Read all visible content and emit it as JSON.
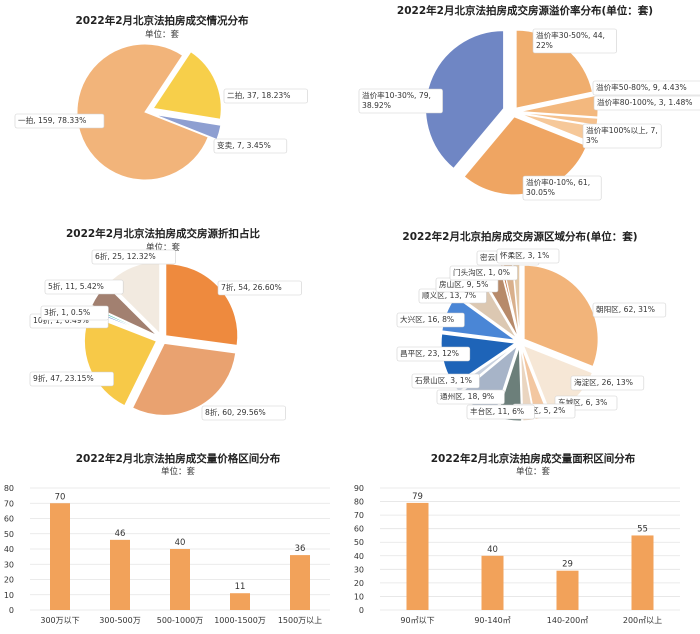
{
  "chart_data": [
    {
      "id": "c1",
      "type": "pie",
      "title": "2022年2月北京法拍房成交情况分布",
      "subtitle": "单位：套",
      "slices": [
        {
          "label": "一拍, 159, 78.33%",
          "value": 159,
          "color": "#F2B47A"
        },
        {
          "label": "二拍, 37, 18.23%",
          "value": 37,
          "color": "#F7CF4A"
        },
        {
          "label": "变卖, 7, 3.45%",
          "value": 7,
          "color": "#8E9FD1"
        }
      ]
    },
    {
      "id": "c2",
      "type": "pie",
      "title": "2022年2月北京法拍房成交房源溢价率分布(单位：套)",
      "subtitle": "",
      "slices": [
        {
          "label": "溢价率30-50%, 44, 22%",
          "value": 44,
          "color": "#F0AE6E"
        },
        {
          "label": "溢价率50-80%, 9, 4.43%",
          "value": 9,
          "color": "#F3B87E"
        },
        {
          "label": "溢价率80-100%, 3, 1.48%",
          "value": 3,
          "color": "#F5C18E"
        },
        {
          "label": "溢价率100%以上, 7, 3%",
          "value": 7,
          "color": "#F6C899"
        },
        {
          "label": "溢价率0-10%, 61, 30.05%",
          "value": 61,
          "color": "#EFA562"
        },
        {
          "label": "溢价率10-30%, 79, 38.92%",
          "value": 79,
          "color": "#6F86C4"
        }
      ]
    },
    {
      "id": "c3",
      "type": "pie",
      "title": "2022年2月北京法拍房成交房源折扣占比",
      "subtitle": "单位：套",
      "slices": [
        {
          "label": "7折, 54, 26.60%",
          "value": 54,
          "color": "#EE8A3E"
        },
        {
          "label": "8折, 60, 29.56%",
          "value": 60,
          "color": "#E9A270"
        },
        {
          "label": "9折, 47, 23.15%",
          "value": 47,
          "color": "#F7C948"
        },
        {
          "label": "10折, 1, 0.49%",
          "value": 1,
          "color": "#5E8FD6"
        },
        {
          "label": "3折, 1, 0.5%",
          "value": 1,
          "color": "#3FBFAF"
        },
        {
          "label": "5折, 11, 5.42%",
          "value": 11,
          "color": "#A28070"
        },
        {
          "label": "6折, 25, 12.32%",
          "value": 25,
          "color": "#F2EAE0"
        }
      ]
    },
    {
      "id": "c4",
      "type": "pie",
      "title": "2022年2月北京拍房成交房源区域分布(单位：套)",
      "subtitle": "",
      "slices": [
        {
          "label": "朝阳区, 62, 31%",
          "value": 62,
          "color": "#F2B47A"
        },
        {
          "label": "海淀区, 26, 13%",
          "value": 26,
          "color": "#F6E7D6"
        },
        {
          "label": "东城区, 6, 3%",
          "value": 6,
          "color": "#F3C7A1"
        },
        {
          "label": "西城区, 5, 2%",
          "value": 5,
          "color": "#EAD5C0"
        },
        {
          "label": "丰台区, 11, 6%",
          "value": 11,
          "color": "#6C7F7A"
        },
        {
          "label": "通州区, 18, 9%",
          "value": 18,
          "color": "#A7B4C8"
        },
        {
          "label": "石景山区, 3, 1%",
          "value": 3,
          "color": "#C9D1DE"
        },
        {
          "label": "昌平区, 23, 12%",
          "value": 23,
          "color": "#1E64B8"
        },
        {
          "label": "大兴区, 16, 8%",
          "value": 16,
          "color": "#4A86D6"
        },
        {
          "label": "顺义区, 13, 7%",
          "value": 13,
          "color": "#DCC8B2"
        },
        {
          "label": "房山区, 9, 5%",
          "value": 9,
          "color": "#B78A6A"
        },
        {
          "label": "门头沟区, 1, 0%",
          "value": 1,
          "color": "#C06A3A"
        },
        {
          "label": "密云区, 4, 2%",
          "value": 4,
          "color": "#D9B08C"
        },
        {
          "label": "怀柔区, 3, 1%",
          "value": 3,
          "color": "#E3C9A8"
        }
      ]
    },
    {
      "id": "c5",
      "type": "bar",
      "title": "2022年2月北京法拍房成交量价格区间分布",
      "subtitle": "单位：套",
      "categories": [
        "300万以下",
        "300-500万",
        "500-1000万",
        "1000-1500万",
        "1500万以上"
      ],
      "values": [
        70,
        46,
        40,
        11,
        36
      ],
      "ylim": [
        0,
        80
      ],
      "yticks": [
        "0",
        "10",
        "20",
        "30",
        "40",
        "50",
        "60",
        "70",
        "80"
      ],
      "color": "#F2A25A"
    },
    {
      "id": "c6",
      "type": "bar",
      "title": "2022年2月北京法拍房成交量面积区间分布",
      "subtitle": "单位：套",
      "categories": [
        "90㎡以下",
        "90-140㎡",
        "140-200㎡",
        "200㎡以上"
      ],
      "values": [
        79,
        40,
        29,
        55
      ],
      "ylim": [
        0,
        90
      ],
      "yticks": [
        "0",
        "10",
        "20",
        "30",
        "40",
        "50",
        "60",
        "70",
        "80",
        "90"
      ],
      "color": "#F2A25A"
    }
  ]
}
